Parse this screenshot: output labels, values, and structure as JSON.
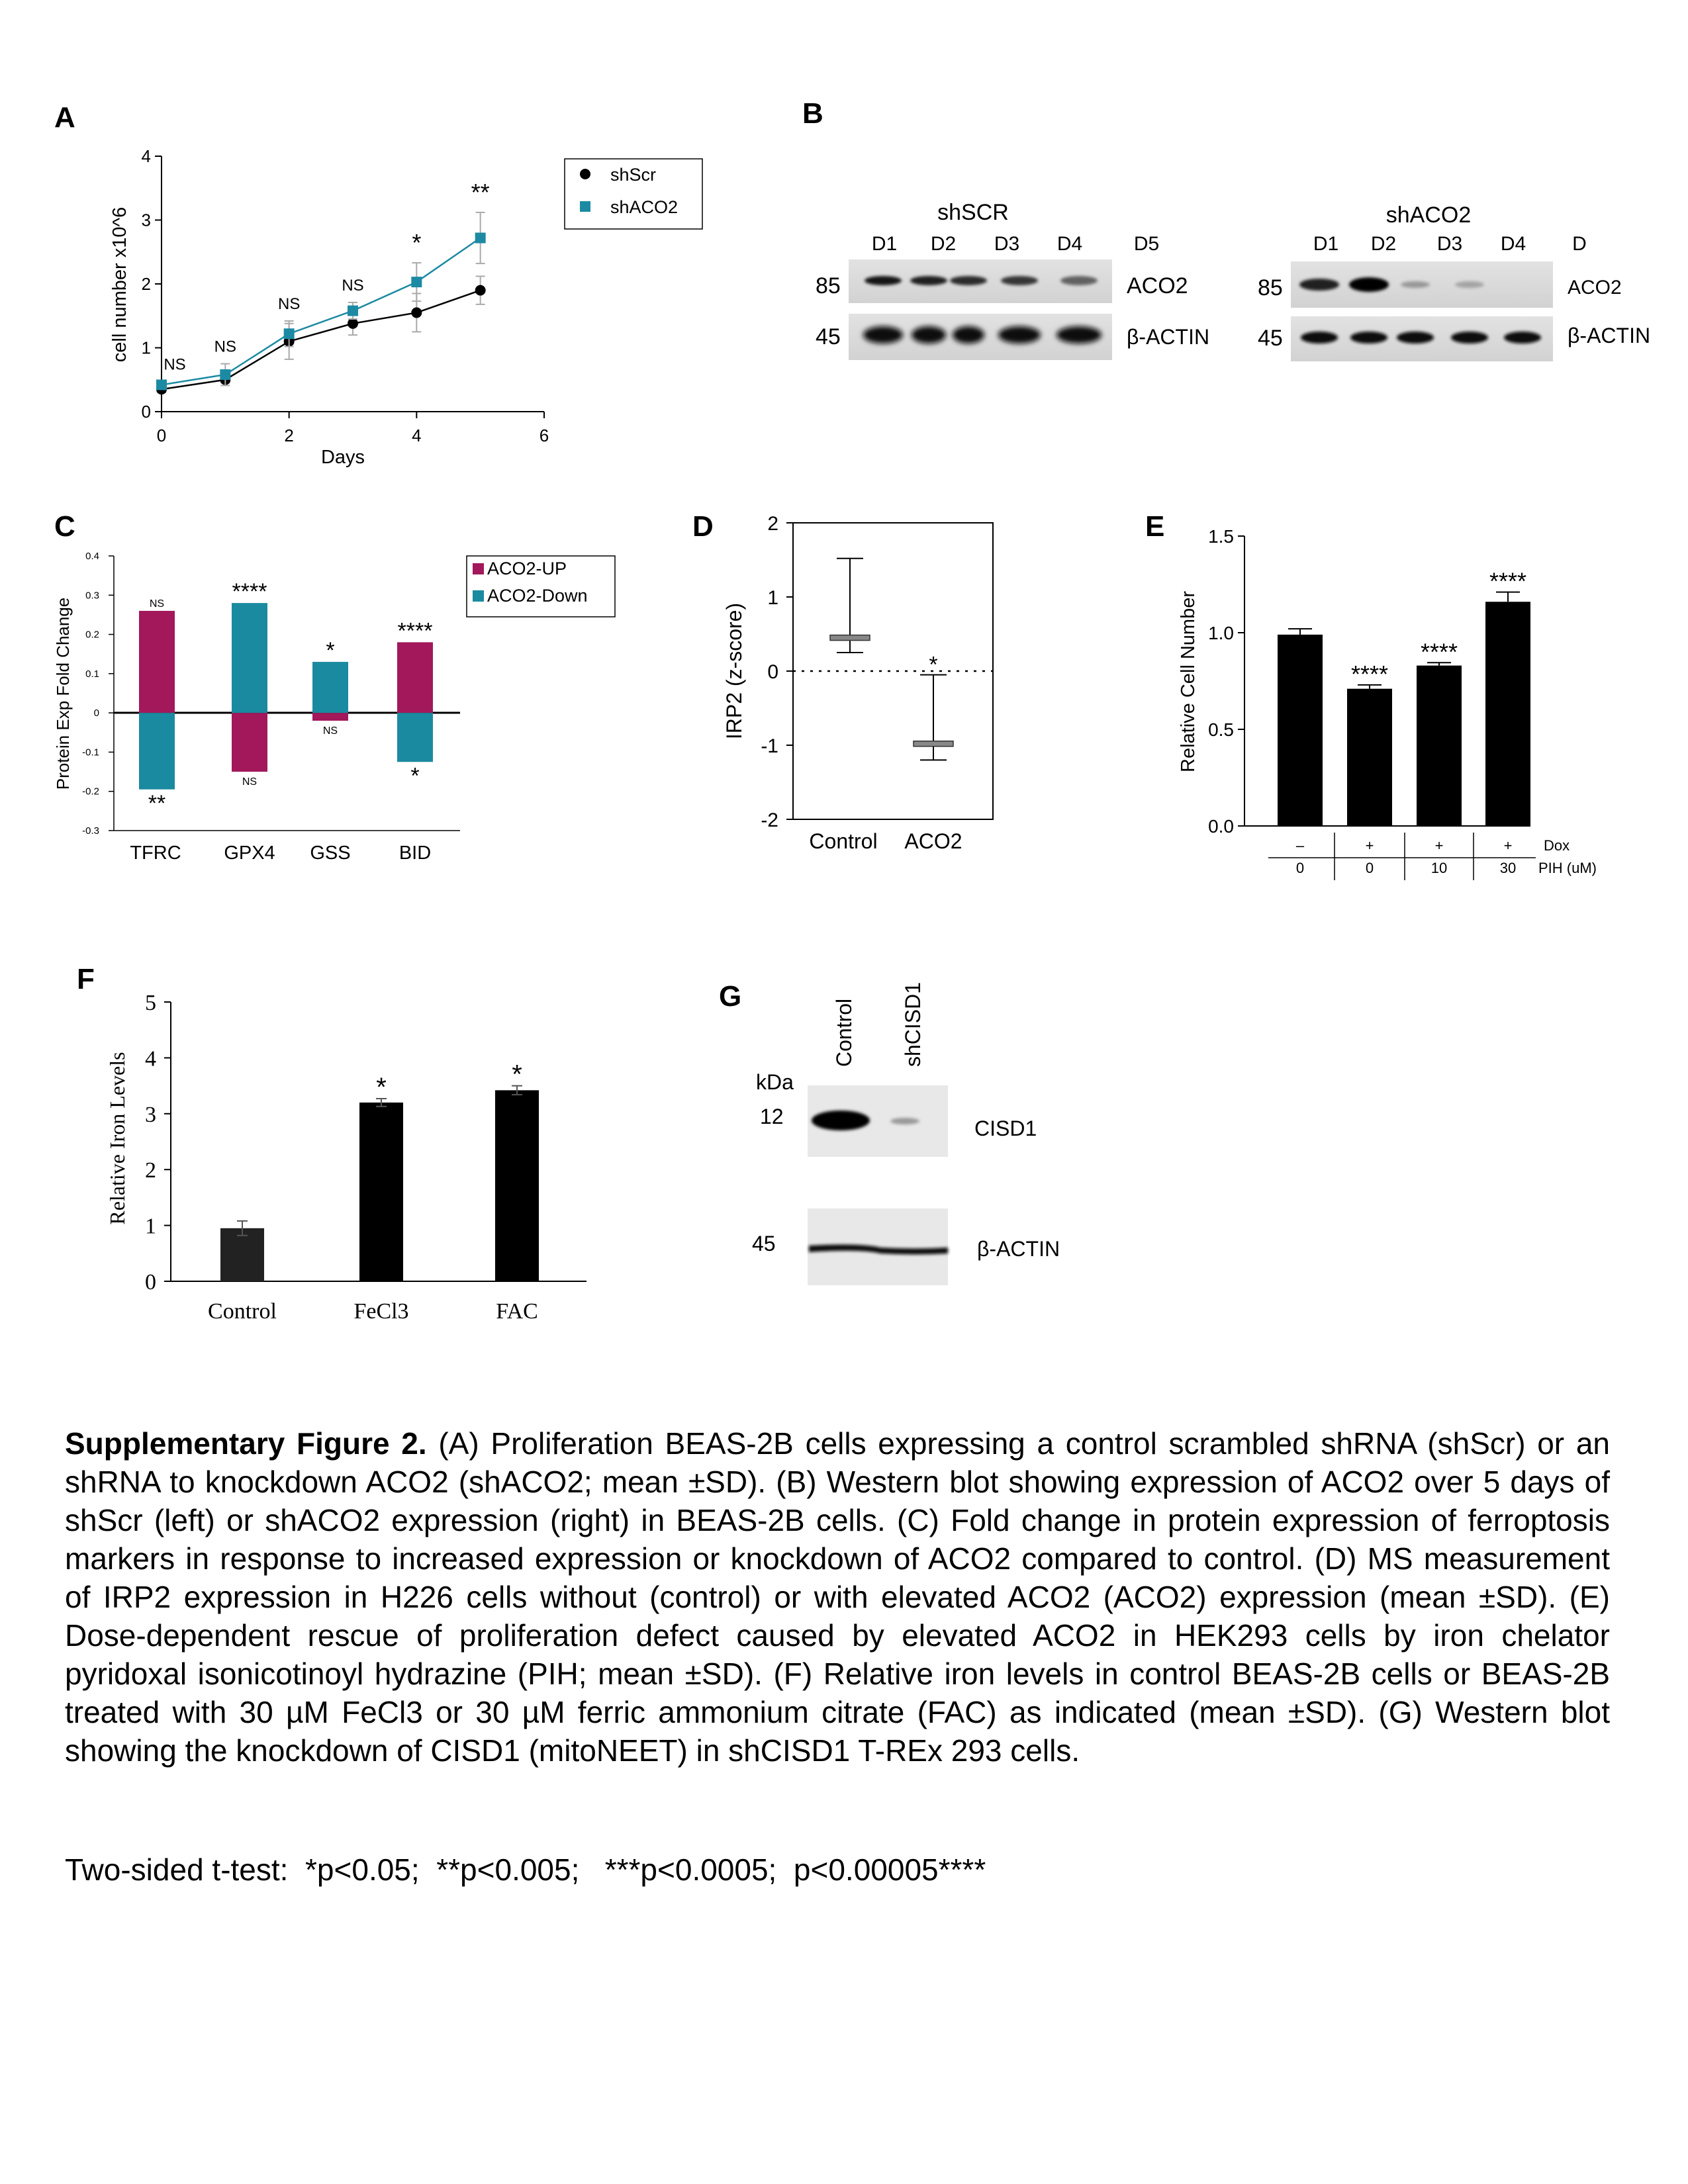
{
  "panels": {
    "A": {
      "letter": "A",
      "chart_data": {
        "type": "line",
        "x": [
          0,
          1,
          2,
          3,
          4,
          5
        ],
        "series": [
          {
            "name": "shScr",
            "values": [
              0.35,
              0.5,
              1.1,
              1.38,
              1.55,
              1.9
            ],
            "err": [
              0.05,
              0.05,
              0.28,
              0.18,
              0.3,
              0.22
            ],
            "color": "#000000",
            "marker": "circle"
          },
          {
            "name": "shACO2",
            "values": [
              0.42,
              0.58,
              1.22,
              1.58,
              2.03,
              2.72
            ],
            "err": [
              0.05,
              0.17,
              0.2,
              0.13,
              0.3,
              0.4
            ],
            "color": "#1d8aa3",
            "marker": "square"
          }
        ],
        "sig": [
          "NS",
          "NS",
          "NS",
          "NS",
          "*",
          "**"
        ],
        "xlabel": "Days",
        "ylabel": "cell number x10^6",
        "xlim": [
          0,
          6
        ],
        "ylim": [
          0,
          4
        ],
        "xticks": [
          "0",
          "2",
          "4",
          "6"
        ],
        "yticks": [
          "0",
          "1",
          "2",
          "3",
          "4"
        ],
        "legend_position": "top-right"
      }
    },
    "B": {
      "letter": "B",
      "left_title": "shSCR",
      "right_title": "shACO2",
      "left_lanes": [
        "D1",
        "D2",
        "D3",
        "D4",
        "D5"
      ],
      "right_lanes": [
        "D1",
        "D2",
        "D3",
        "D4",
        "D"
      ],
      "mw_top": "85",
      "mw_bottom": "45",
      "protein_top": "ACO2",
      "protein_bottom": "β-ACTIN",
      "left_aco2_intensity": [
        0.9,
        0.85,
        0.8,
        0.75,
        0.55
      ],
      "right_aco2_intensity": [
        0.85,
        1.0,
        0.3,
        0.25,
        0.0
      ]
    },
    "C": {
      "letter": "C",
      "chart_data": {
        "type": "bar",
        "categories": [
          "TFRC",
          "GPX4",
          "GSS",
          "BID"
        ],
        "series": [
          {
            "name": "ACO2-UP",
            "values": [
              0.26,
              -0.15,
              -0.02,
              0.18
            ],
            "sig": [
              "NS",
              "NS",
              "NS",
              "****"
            ],
            "color": "#a2185b"
          },
          {
            "name": "ACO2-Down",
            "values": [
              -0.195,
              0.28,
              0.13,
              -0.125
            ],
            "sig": [
              "**",
              "****",
              "*",
              "*"
            ],
            "color": "#1a8aa0"
          }
        ],
        "ylabel": "Protein Exp Fold Change",
        "ylim": [
          -0.3,
          0.4
        ],
        "yticks": [
          "0.4",
          "0.3",
          "0.2",
          "0.1",
          "0",
          "-0.1",
          "-0.2",
          "-0.3"
        ],
        "legend_position": "top-right"
      }
    },
    "D": {
      "letter": "D",
      "chart_data": {
        "type": "box",
        "categories": [
          "Control",
          "ACO2"
        ],
        "values": [
          0.45,
          -0.98
        ],
        "whisker_low": [
          0.25,
          -1.2
        ],
        "whisker_high": [
          1.52,
          -0.05
        ],
        "sig": [
          "",
          "*"
        ],
        "ylabel": "IRP2 (z-score)",
        "ylim": [
          -2,
          2
        ],
        "yticks": [
          "2",
          "1",
          "0",
          "-1",
          "-2"
        ]
      }
    },
    "E": {
      "letter": "E",
      "chart_data": {
        "type": "bar",
        "categories": [
          "1",
          "2",
          "3",
          "4"
        ],
        "values": [
          0.99,
          0.71,
          0.83,
          1.16
        ],
        "err": [
          0.03,
          0.02,
          0.015,
          0.05
        ],
        "sig": [
          "",
          "****",
          "****",
          "****"
        ],
        "ylabel": "Relative Cell Number",
        "ylim": [
          0,
          1.5
        ],
        "yticks": [
          "1.5",
          "1.0",
          "0.5",
          "0.0"
        ],
        "dox": [
          "–",
          "+",
          "+",
          "+"
        ],
        "pih": [
          "0",
          "0",
          "10",
          "30"
        ],
        "dox_label": "Dox",
        "pih_label": "PIH (uM)"
      }
    },
    "F": {
      "letter": "F",
      "chart_data": {
        "type": "bar",
        "categories": [
          "Control",
          "FeCl3",
          "FAC"
        ],
        "values": [
          0.95,
          3.2,
          3.42
        ],
        "err": [
          0.13,
          0.07,
          0.08
        ],
        "sig": [
          "",
          "*",
          "*"
        ],
        "ylabel": "Relative Iron Levels",
        "ylim": [
          0,
          5
        ],
        "yticks": [
          "5",
          "4",
          "3",
          "2",
          "1",
          "0"
        ]
      }
    },
    "G": {
      "letter": "G",
      "lanes": [
        "Control",
        "shCISD1"
      ],
      "kda_label": "kDa",
      "mw_top": "12",
      "mw_bottom": "45",
      "protein_top": "CISD1",
      "protein_bottom": "β-ACTIN"
    }
  },
  "caption": {
    "title": "Supplementary Figure 2.",
    "text": " (A) Proliferation BEAS-2B cells expressing a control scrambled shRNA (shScr) or an shRNA to knockdown ACO2 (shACO2; mean ±SD). (B) Western blot showing expression of ACO2 over 5 days of shScr (left) or shACO2 expression (right) in BEAS-2B cells.  (C) Fold change in protein expression of ferroptosis markers in response to increased expression or knockdown of ACO2 compared to control. (D) MS measurement of IRP2 expression in H226 cells without (control) or with elevated ACO2 (ACO2) expression (mean ±SD). (E) Dose-dependent rescue of proliferation defect caused by elevated ACO2 in HEK293 cells by iron chelator pyridoxal isonicotinoyl hydrazine (PIH; mean ±SD). (F) Relative iron levels in control BEAS-2B cells or BEAS-2B treated with 30 µM FeCl3 or 30 µM ferric ammonium citrate (FAC) as indicated (mean ±SD). (G) Western blot showing the knockdown of CISD1 (mitoNEET) in shCISD1 T-REx 293 cells.",
    "stats": "Two-sided t-test:  *p<0.05;  **p<0.005;   ***p<0.0005;  p<0.00005****"
  }
}
